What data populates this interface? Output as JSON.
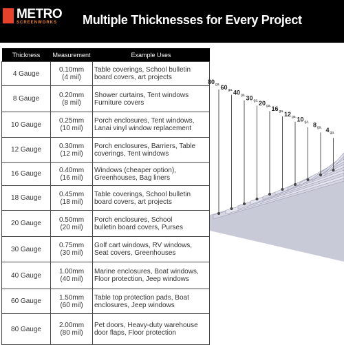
{
  "header": {
    "logo": "METRO",
    "logo_sub": "SCREENWORKS",
    "title": "Multiple Thicknesses for Every Project"
  },
  "table": {
    "columns": [
      "Thickness",
      "Measurement",
      "Example Uses"
    ],
    "rows": [
      [
        "4 Gauge",
        [
          "0.10mm",
          "(4 mil)"
        ],
        [
          "Table coverings, School bulletin",
          "board covers, art projects"
        ]
      ],
      [
        "8 Gauge",
        [
          "0.20mm",
          "(8 mil)"
        ],
        [
          "Shower curtains,  Tent windows",
          "Furniture covers"
        ]
      ],
      [
        "10 Gauge",
        [
          "0.25mm",
          "(10 mil)"
        ],
        [
          "Porch enclosures, Tent windows,",
          "Lanai vinyl window replacement"
        ]
      ],
      [
        "12 Gauge",
        [
          "0.30mm",
          "(12 mil)"
        ],
        [
          "Porch enclosures, Barriers, Table",
          "coverings, Tent windows"
        ]
      ],
      [
        "16 Gauge",
        [
          "0.40mm",
          "(16 mil)"
        ],
        [
          "Windows (cheaper option),",
          "Greenhouses, Bag liners"
        ]
      ],
      [
        "18 Gauge",
        [
          "0.45mm",
          "(18 mil)"
        ],
        [
          "Table coverings, School bulletin",
          "board covers, art projects"
        ]
      ],
      [
        "20 Gauge",
        [
          "0.50mm",
          "(20 mil)"
        ],
        [
          "Porch enclosures, School",
          "bulletin board covers, Purses"
        ]
      ],
      [
        "30 Gauge",
        [
          "0.75mm",
          "(30 mil)"
        ],
        [
          "Golf cart windows, RV windows,",
          "Seat covers, Greenhouses"
        ]
      ],
      [
        "40 Gauge",
        [
          "1.00mm",
          "(40 mil)"
        ],
        [
          "Marine enclosures, Boat windows,",
          "Floor protection, Jeep windows"
        ]
      ],
      [
        "60 Gauge",
        [
          "1.50mm",
          "(60 mil)"
        ],
        [
          "Table top protection pads, Boat",
          "enclosures, Jeep windows"
        ]
      ],
      [
        "80 Gauge",
        [
          "2.00mm",
          "(80 mil)"
        ],
        [
          "Pet doors, Heavy-duty warehouse",
          "door flaps, Floor protection"
        ]
      ]
    ]
  },
  "diagram": {
    "unit": "ga.",
    "labels": [
      "80",
      "60",
      "40",
      "30",
      "20",
      "16",
      "12",
      "10",
      "8",
      "4"
    ]
  }
}
